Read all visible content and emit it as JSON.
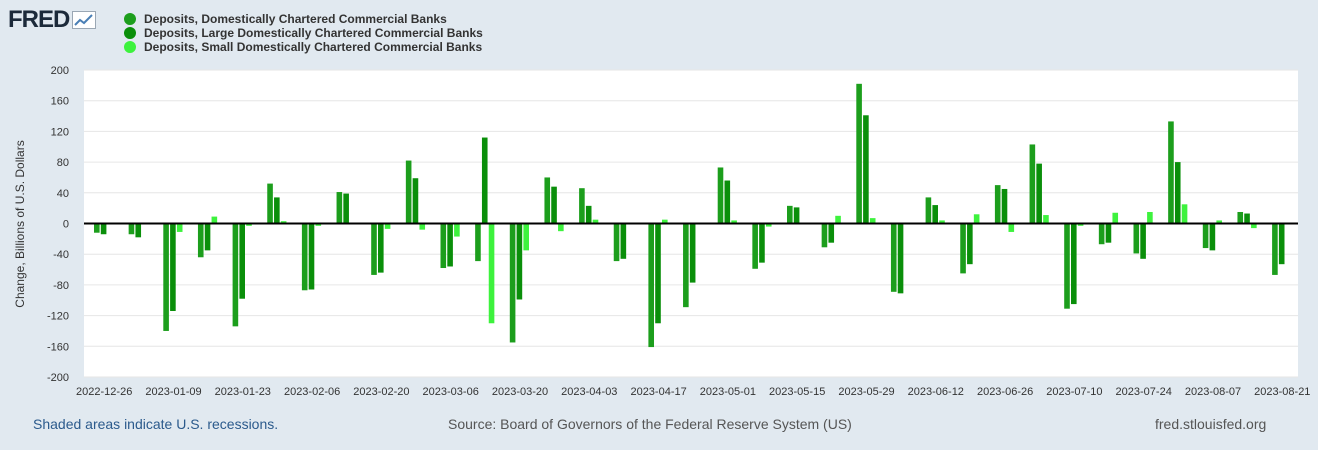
{
  "brand": {
    "name": "FRED",
    "icon": "line-chart-icon"
  },
  "colors": {
    "series1": "#1c9e1c",
    "series2": "#0a8f0a",
    "series3": "#3df23d",
    "zero_line": "#000000",
    "grid": "#e6e6e6"
  },
  "footer": {
    "recessions": "Shaded areas indicate U.S. recessions.",
    "source": "Source: Board of Governors of the Federal Reserve System (US)",
    "site": "fred.stlouisfed.org"
  },
  "chart_data": {
    "type": "bar",
    "title": "",
    "xlabel": "",
    "ylabel": "Change, Billions of U.S. Dollars",
    "ylim": [
      -200,
      200
    ],
    "yticks": [
      -200,
      -160,
      -120,
      -80,
      -40,
      0,
      40,
      80,
      120,
      160,
      200
    ],
    "legend_position": "top-left",
    "categories": [
      "2022-12-26",
      "2023-01-02",
      "2023-01-09",
      "2023-01-16",
      "2023-01-23",
      "2023-01-30",
      "2023-02-06",
      "2023-02-13",
      "2023-02-20",
      "2023-02-27",
      "2023-03-06",
      "2023-03-13",
      "2023-03-20",
      "2023-03-27",
      "2023-04-03",
      "2023-04-10",
      "2023-04-17",
      "2023-04-24",
      "2023-05-01",
      "2023-05-08",
      "2023-05-15",
      "2023-05-22",
      "2023-05-29",
      "2023-06-05",
      "2023-06-12",
      "2023-06-19",
      "2023-06-26",
      "2023-07-03",
      "2023-07-10",
      "2023-07-17",
      "2023-07-24",
      "2023-07-31",
      "2023-08-07",
      "2023-08-14",
      "2023-08-21"
    ],
    "xtick_labels": [
      "2022-12-26",
      "2023-01-09",
      "2023-01-23",
      "2023-02-06",
      "2023-02-20",
      "2023-03-06",
      "2023-03-20",
      "2023-04-03",
      "2023-04-17",
      "2023-05-01",
      "2023-05-15",
      "2023-05-29",
      "2023-06-12",
      "2023-06-26",
      "2023-07-10",
      "2023-07-24",
      "2023-08-07",
      "2023-08-21"
    ],
    "series": [
      {
        "name": "Deposits, Domestically Chartered Commercial Banks",
        "values": [
          -12,
          -14,
          -140,
          -44,
          -134,
          52,
          -87,
          41,
          -67,
          82,
          -58,
          -49,
          -155,
          60,
          46,
          -49,
          -161,
          -109,
          73,
          -59,
          23,
          -31,
          182,
          -89,
          34,
          -65,
          50,
          103,
          -111,
          -27,
          -39,
          133,
          -32,
          15,
          -67
        ]
      },
      {
        "name": "Deposits, Large Domestically Chartered Commercial Banks",
        "values": [
          -14,
          -18,
          -114,
          -35,
          -98,
          34,
          -86,
          39,
          -64,
          59,
          -56,
          112,
          -99,
          48,
          23,
          -46,
          -130,
          -77,
          56,
          -51,
          21,
          -25,
          141,
          -91,
          24,
          -53,
          45,
          78,
          -105,
          -25,
          -46,
          80,
          -35,
          13,
          -53
        ]
      },
      {
        "name": "Deposits, Small Domestically Chartered Commercial Banks",
        "values": [
          0,
          0,
          -11,
          9,
          -3,
          3,
          -3,
          0,
          -7,
          -8,
          -17,
          -130,
          -35,
          -10,
          5,
          0,
          5,
          0,
          4,
          -4,
          0,
          10,
          7,
          0,
          4,
          12,
          -11,
          11,
          -3,
          14,
          15,
          25,
          4,
          -6,
          0
        ]
      }
    ]
  }
}
